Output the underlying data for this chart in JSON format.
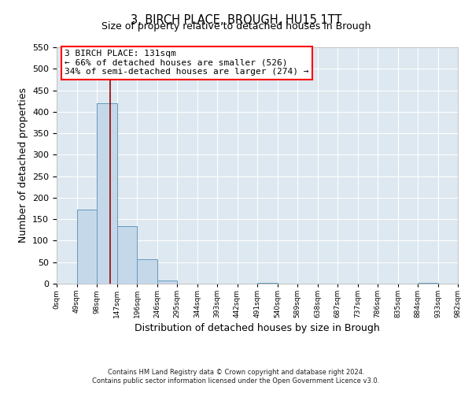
{
  "title": "3, BIRCH PLACE, BROUGH, HU15 1TT",
  "subtitle": "Size of property relative to detached houses in Brough",
  "xlabel": "Distribution of detached houses by size in Brough",
  "ylabel": "Number of detached properties",
  "bar_values": [
    0,
    172,
    420,
    133,
    57,
    7,
    0,
    0,
    0,
    0,
    2,
    0,
    0,
    0,
    0,
    0,
    0,
    0,
    2
  ],
  "bin_edges": [
    0,
    49,
    98,
    147,
    196,
    245,
    294,
    343,
    392,
    441,
    490,
    539,
    588,
    637,
    686,
    735,
    784,
    833,
    882,
    931
  ],
  "bin_width": 49,
  "tick_labels": [
    "0sqm",
    "49sqm",
    "98sqm",
    "147sqm",
    "196sqm",
    "246sqm",
    "295sqm",
    "344sqm",
    "393sqm",
    "442sqm",
    "491sqm",
    "540sqm",
    "589sqm",
    "638sqm",
    "687sqm",
    "737sqm",
    "786sqm",
    "835sqm",
    "884sqm",
    "933sqm",
    "982sqm"
  ],
  "bar_color": "#c5d8ea",
  "bar_edge_color": "#6699bb",
  "red_line_x": 131,
  "ylim": [
    0,
    550
  ],
  "yticks": [
    0,
    50,
    100,
    150,
    200,
    250,
    300,
    350,
    400,
    450,
    500,
    550
  ],
  "annotation_title": "3 BIRCH PLACE: 131sqm",
  "annotation_line1": "← 66% of detached houses are smaller (526)",
  "annotation_line2": "34% of semi-detached houses are larger (274) →",
  "footer1": "Contains HM Land Registry data © Crown copyright and database right 2024.",
  "footer2": "Contains public sector information licensed under the Open Government Licence v3.0.",
  "fig_bg_color": "#ffffff",
  "axes_bg_color": "#dde8f0",
  "grid_color": "#ffffff"
}
